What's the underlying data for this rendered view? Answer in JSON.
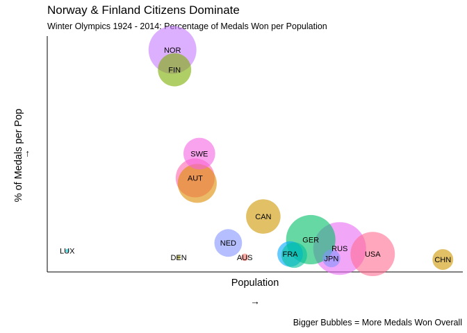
{
  "chart_data": {
    "type": "scatter",
    "title": "Norway & Finland Citizens Dominate",
    "subtitle": "Winter Olympics 1924 - 2014: Percentage of Medals Won per Population",
    "xlabel": "Population",
    "x_arrow": "→",
    "ylabel": "% of Medals per Pop",
    "y_arrow": "→",
    "caption": "Bigger Bubbles = More Medals Won Overall",
    "grid": false,
    "ticks_shown": false,
    "points": [
      {
        "label": "NOR",
        "x": 30.0,
        "y": 100.0,
        "size": 329,
        "color": "#c77cff"
      },
      {
        "label": "FIN",
        "x": 30.5,
        "y": 91.0,
        "size": 159,
        "color": "#7cae00"
      },
      {
        "label": "SWE",
        "x": 36.5,
        "y": 53.0,
        "size": 144,
        "color": "#f564e3"
      },
      {
        "label": "AUT",
        "x": 35.5,
        "y": 42.0,
        "size": 218,
        "color": "#ff64b0"
      },
      {
        "label": "AUT",
        "x": 36.0,
        "y": 39.5,
        "size": 218,
        "color": "#de8c00"
      },
      {
        "label": "CAN",
        "x": 52.0,
        "y": 24.5,
        "size": 170,
        "color": "#cd9600"
      },
      {
        "label": "NED",
        "x": 43.5,
        "y": 12.5,
        "size": 110,
        "color": "#8494ff"
      },
      {
        "label": "GER",
        "x": 63.5,
        "y": 14.0,
        "size": 350,
        "color": "#00be67"
      },
      {
        "label": "RUS",
        "x": 70.5,
        "y": 10.0,
        "size": 400,
        "color": "#e76bf3"
      },
      {
        "label": "USA",
        "x": 78.5,
        "y": 7.5,
        "size": 282,
        "color": "#ff6c91"
      },
      {
        "label": "JPN",
        "x": 68.5,
        "y": 5.5,
        "size": 45,
        "color": "#8494ff"
      },
      {
        "label": "FRA",
        "x": 58.5,
        "y": 7.5,
        "size": 94,
        "color": "#00a9ff"
      },
      {
        "label": "FRA",
        "x": 59.5,
        "y": 7.0,
        "size": 94,
        "color": "#00c19a"
      },
      {
        "label": "LUX",
        "x": 4.5,
        "y": 9.0,
        "size": 2,
        "color": "#00bfc4"
      },
      {
        "label": "DEN",
        "x": 31.5,
        "y": 6.0,
        "size": 2,
        "color": "#a3a500"
      },
      {
        "label": "AUS",
        "x": 47.5,
        "y": 6.0,
        "size": 8,
        "color": "#f8766d"
      },
      {
        "label": "CHN",
        "x": 95.5,
        "y": 5.0,
        "size": 62,
        "color": "#cd9600"
      }
    ],
    "xlim": [
      0,
      100
    ],
    "ylim": [
      0,
      105
    ]
  }
}
